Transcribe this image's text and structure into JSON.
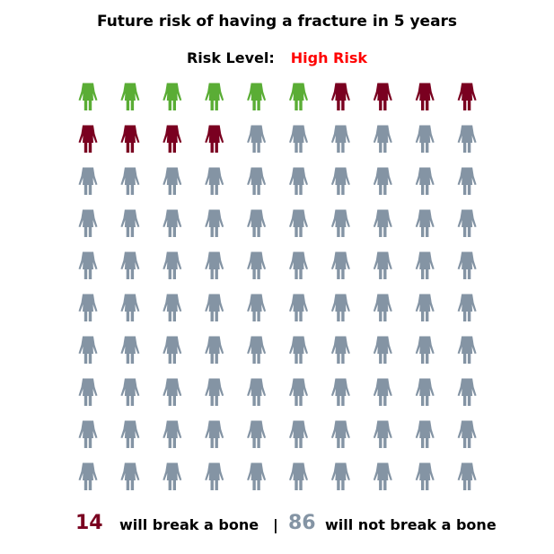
{
  "title": "Future risk of having a fracture in 5 years",
  "risk": {
    "label": "Risk Level:",
    "value": "High Risk",
    "value_color": "#ff0000"
  },
  "summary": {
    "break_count": "14",
    "break_text": "will break a bone",
    "separator": "|",
    "safe_count": "86",
    "safe_text": "will not break a bone"
  },
  "colors": {
    "green": "#5aad35",
    "red": "#7a0020",
    "gray": "#8494a4"
  },
  "chart_data": {
    "type": "pictograph",
    "total": 100,
    "rows": 10,
    "cols": 10,
    "icon": "woman-icon",
    "categories": [
      {
        "count": 6,
        "color": "#5aad35"
      },
      {
        "count": 8,
        "color": "#7a0020"
      },
      {
        "count": 86,
        "color": "#8494a4"
      }
    ]
  }
}
